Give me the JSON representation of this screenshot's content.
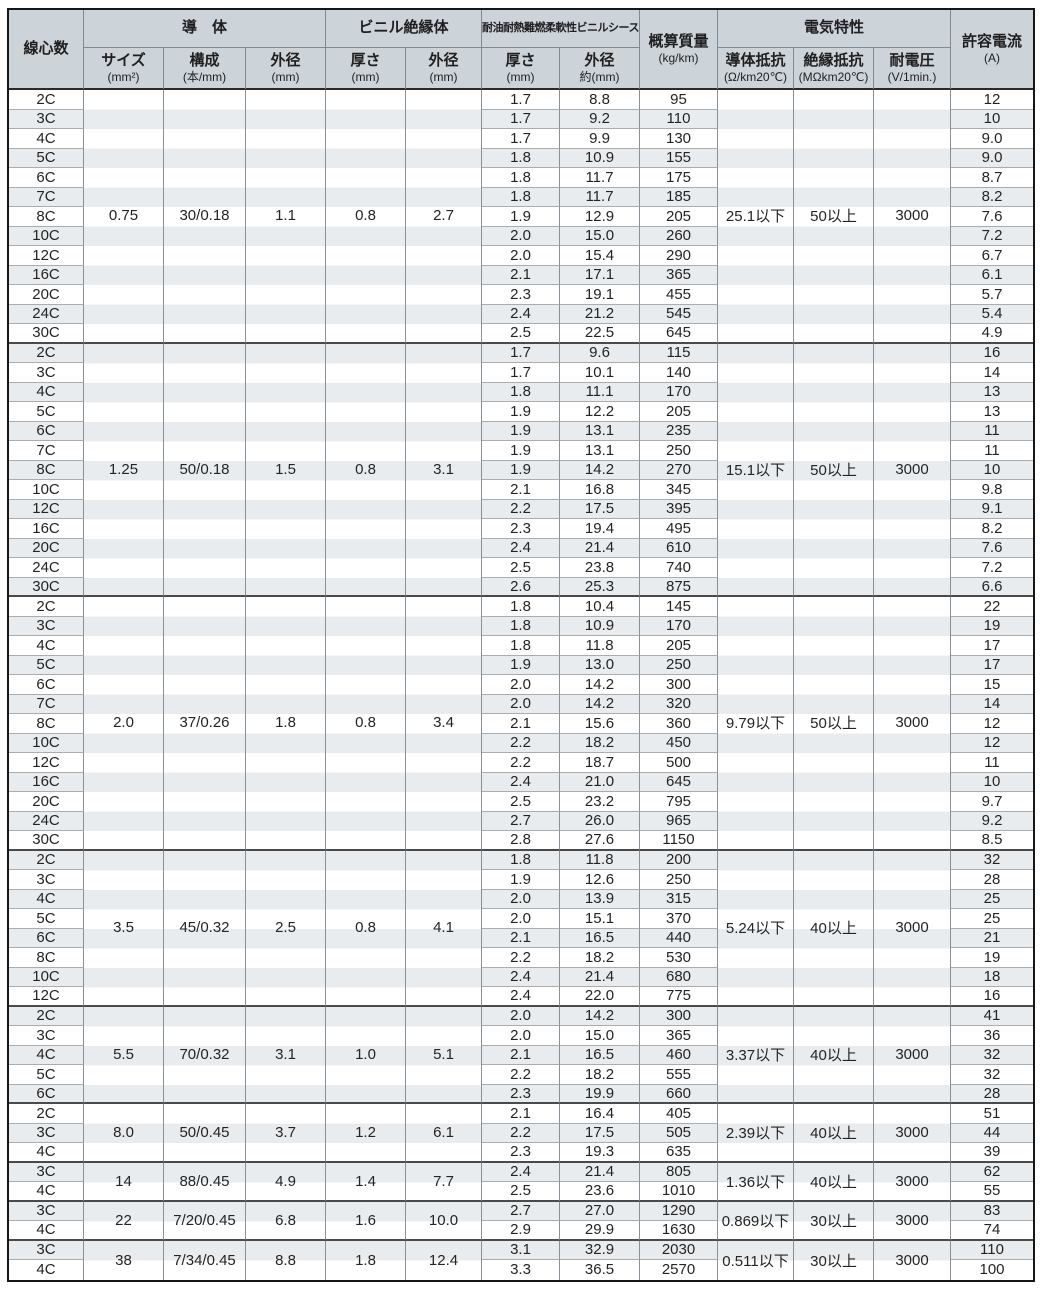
{
  "colors": {
    "header_bg": "#ccd3d9",
    "stripe": "#e8ecef",
    "white": "#ffffff",
    "frame": "#161616",
    "group_line": "#4a4a4a",
    "row_line": "#a8adb2"
  },
  "header": {
    "core": "線心数",
    "conductor_group": "導　体",
    "size": "サイズ",
    "size_unit": "(mm²)",
    "strand": "構成",
    "strand_unit": "(本/mm)",
    "cond_od": "外径",
    "cond_od_unit": "(mm)",
    "insulation_group": "ビニル絶縁体",
    "ins_thk": "厚さ",
    "ins_thk_unit": "(mm)",
    "ins_od": "外径",
    "ins_od_unit": "(mm)",
    "sheath_group": "耐油耐熱難燃柔軟性ビニルシース",
    "sheath_thk": "厚さ",
    "sheath_thk_unit": "(mm)",
    "sheath_od": "外径",
    "sheath_od_unit": "約(mm)",
    "mass": "概算質量",
    "mass_unit": "(kg/km)",
    "electric_group": "電気特性",
    "cond_res": "導体抵抗",
    "cond_res_unit": "(Ω/km20℃)",
    "ins_res": "絶縁抵抗",
    "ins_res_unit": "(MΩkm20℃)",
    "voltage": "耐電圧",
    "voltage_unit": "(V/1min.)",
    "current": "許容電流",
    "current_unit": "(A)"
  },
  "groups": [
    {
      "size": "0.75",
      "strand": "30/0.18",
      "cond_od": "1.1",
      "ins_thk": "0.8",
      "ins_od": "2.7",
      "cond_res": "25.1以下",
      "ins_res": "50以上",
      "voltage": "3000",
      "rows": [
        {
          "cores": "2C",
          "sheath_thk": "1.7",
          "sheath_od": "8.8",
          "mass": "95",
          "current": "12"
        },
        {
          "cores": "3C",
          "sheath_thk": "1.7",
          "sheath_od": "9.2",
          "mass": "110",
          "current": "10"
        },
        {
          "cores": "4C",
          "sheath_thk": "1.7",
          "sheath_od": "9.9",
          "mass": "130",
          "current": "9.0"
        },
        {
          "cores": "5C",
          "sheath_thk": "1.8",
          "sheath_od": "10.9",
          "mass": "155",
          "current": "9.0"
        },
        {
          "cores": "6C",
          "sheath_thk": "1.8",
          "sheath_od": "11.7",
          "mass": "175",
          "current": "8.7"
        },
        {
          "cores": "7C",
          "sheath_thk": "1.8",
          "sheath_od": "11.7",
          "mass": "185",
          "current": "8.2"
        },
        {
          "cores": "8C",
          "sheath_thk": "1.9",
          "sheath_od": "12.9",
          "mass": "205",
          "current": "7.6"
        },
        {
          "cores": "10C",
          "sheath_thk": "2.0",
          "sheath_od": "15.0",
          "mass": "260",
          "current": "7.2"
        },
        {
          "cores": "12C",
          "sheath_thk": "2.0",
          "sheath_od": "15.4",
          "mass": "290",
          "current": "6.7"
        },
        {
          "cores": "16C",
          "sheath_thk": "2.1",
          "sheath_od": "17.1",
          "mass": "365",
          "current": "6.1"
        },
        {
          "cores": "20C",
          "sheath_thk": "2.3",
          "sheath_od": "19.1",
          "mass": "455",
          "current": "5.7"
        },
        {
          "cores": "24C",
          "sheath_thk": "2.4",
          "sheath_od": "21.2",
          "mass": "545",
          "current": "5.4"
        },
        {
          "cores": "30C",
          "sheath_thk": "2.5",
          "sheath_od": "22.5",
          "mass": "645",
          "current": "4.9"
        }
      ]
    },
    {
      "size": "1.25",
      "strand": "50/0.18",
      "cond_od": "1.5",
      "ins_thk": "0.8",
      "ins_od": "3.1",
      "cond_res": "15.1以下",
      "ins_res": "50以上",
      "voltage": "3000",
      "rows": [
        {
          "cores": "2C",
          "sheath_thk": "1.7",
          "sheath_od": "9.6",
          "mass": "115",
          "current": "16"
        },
        {
          "cores": "3C",
          "sheath_thk": "1.7",
          "sheath_od": "10.1",
          "mass": "140",
          "current": "14"
        },
        {
          "cores": "4C",
          "sheath_thk": "1.8",
          "sheath_od": "11.1",
          "mass": "170",
          "current": "13"
        },
        {
          "cores": "5C",
          "sheath_thk": "1.9",
          "sheath_od": "12.2",
          "mass": "205",
          "current": "13"
        },
        {
          "cores": "6C",
          "sheath_thk": "1.9",
          "sheath_od": "13.1",
          "mass": "235",
          "current": "11"
        },
        {
          "cores": "7C",
          "sheath_thk": "1.9",
          "sheath_od": "13.1",
          "mass": "250",
          "current": "11"
        },
        {
          "cores": "8C",
          "sheath_thk": "1.9",
          "sheath_od": "14.2",
          "mass": "270",
          "current": "10"
        },
        {
          "cores": "10C",
          "sheath_thk": "2.1",
          "sheath_od": "16.8",
          "mass": "345",
          "current": "9.8"
        },
        {
          "cores": "12C",
          "sheath_thk": "2.2",
          "sheath_od": "17.5",
          "mass": "395",
          "current": "9.1"
        },
        {
          "cores": "16C",
          "sheath_thk": "2.3",
          "sheath_od": "19.4",
          "mass": "495",
          "current": "8.2"
        },
        {
          "cores": "20C",
          "sheath_thk": "2.4",
          "sheath_od": "21.4",
          "mass": "610",
          "current": "7.6"
        },
        {
          "cores": "24C",
          "sheath_thk": "2.5",
          "sheath_od": "23.8",
          "mass": "740",
          "current": "7.2"
        },
        {
          "cores": "30C",
          "sheath_thk": "2.6",
          "sheath_od": "25.3",
          "mass": "875",
          "current": "6.6"
        }
      ]
    },
    {
      "size": "2.0",
      "strand": "37/0.26",
      "cond_od": "1.8",
      "ins_thk": "0.8",
      "ins_od": "3.4",
      "cond_res": "9.79以下",
      "ins_res": "50以上",
      "voltage": "3000",
      "rows": [
        {
          "cores": "2C",
          "sheath_thk": "1.8",
          "sheath_od": "10.4",
          "mass": "145",
          "current": "22"
        },
        {
          "cores": "3C",
          "sheath_thk": "1.8",
          "sheath_od": "10.9",
          "mass": "170",
          "current": "19"
        },
        {
          "cores": "4C",
          "sheath_thk": "1.8",
          "sheath_od": "11.8",
          "mass": "205",
          "current": "17"
        },
        {
          "cores": "5C",
          "sheath_thk": "1.9",
          "sheath_od": "13.0",
          "mass": "250",
          "current": "17"
        },
        {
          "cores": "6C",
          "sheath_thk": "2.0",
          "sheath_od": "14.2",
          "mass": "300",
          "current": "15"
        },
        {
          "cores": "7C",
          "sheath_thk": "2.0",
          "sheath_od": "14.2",
          "mass": "320",
          "current": "14"
        },
        {
          "cores": "8C",
          "sheath_thk": "2.1",
          "sheath_od": "15.6",
          "mass": "360",
          "current": "12"
        },
        {
          "cores": "10C",
          "sheath_thk": "2.2",
          "sheath_od": "18.2",
          "mass": "450",
          "current": "12"
        },
        {
          "cores": "12C",
          "sheath_thk": "2.2",
          "sheath_od": "18.7",
          "mass": "500",
          "current": "11"
        },
        {
          "cores": "16C",
          "sheath_thk": "2.4",
          "sheath_od": "21.0",
          "mass": "645",
          "current": "10"
        },
        {
          "cores": "20C",
          "sheath_thk": "2.5",
          "sheath_od": "23.2",
          "mass": "795",
          "current": "9.7"
        },
        {
          "cores": "24C",
          "sheath_thk": "2.7",
          "sheath_od": "26.0",
          "mass": "965",
          "current": "9.2"
        },
        {
          "cores": "30C",
          "sheath_thk": "2.8",
          "sheath_od": "27.6",
          "mass": "1150",
          "current": "8.5"
        }
      ]
    },
    {
      "size": "3.5",
      "strand": "45/0.32",
      "cond_od": "2.5",
      "ins_thk": "0.8",
      "ins_od": "4.1",
      "cond_res": "5.24以下",
      "ins_res": "40以上",
      "voltage": "3000",
      "rows": [
        {
          "cores": "2C",
          "sheath_thk": "1.8",
          "sheath_od": "11.8",
          "mass": "200",
          "current": "32"
        },
        {
          "cores": "3C",
          "sheath_thk": "1.9",
          "sheath_od": "12.6",
          "mass": "250",
          "current": "28"
        },
        {
          "cores": "4C",
          "sheath_thk": "2.0",
          "sheath_od": "13.9",
          "mass": "315",
          "current": "25"
        },
        {
          "cores": "5C",
          "sheath_thk": "2.0",
          "sheath_od": "15.1",
          "mass": "370",
          "current": "25"
        },
        {
          "cores": "6C",
          "sheath_thk": "2.1",
          "sheath_od": "16.5",
          "mass": "440",
          "current": "21"
        },
        {
          "cores": "8C",
          "sheath_thk": "2.2",
          "sheath_od": "18.2",
          "mass": "530",
          "current": "19"
        },
        {
          "cores": "10C",
          "sheath_thk": "2.4",
          "sheath_od": "21.4",
          "mass": "680",
          "current": "18"
        },
        {
          "cores": "12C",
          "sheath_thk": "2.4",
          "sheath_od": "22.0",
          "mass": "775",
          "current": "16"
        }
      ]
    },
    {
      "size": "5.5",
      "strand": "70/0.32",
      "cond_od": "3.1",
      "ins_thk": "1.0",
      "ins_od": "5.1",
      "cond_res": "3.37以下",
      "ins_res": "40以上",
      "voltage": "3000",
      "rows": [
        {
          "cores": "2C",
          "sheath_thk": "2.0",
          "sheath_od": "14.2",
          "mass": "300",
          "current": "41"
        },
        {
          "cores": "3C",
          "sheath_thk": "2.0",
          "sheath_od": "15.0",
          "mass": "365",
          "current": "36"
        },
        {
          "cores": "4C",
          "sheath_thk": "2.1",
          "sheath_od": "16.5",
          "mass": "460",
          "current": "32"
        },
        {
          "cores": "5C",
          "sheath_thk": "2.2",
          "sheath_od": "18.2",
          "mass": "555",
          "current": "32"
        },
        {
          "cores": "6C",
          "sheath_thk": "2.3",
          "sheath_od": "19.9",
          "mass": "660",
          "current": "28"
        }
      ]
    },
    {
      "size": "8.0",
      "strand": "50/0.45",
      "cond_od": "3.7",
      "ins_thk": "1.2",
      "ins_od": "6.1",
      "cond_res": "2.39以下",
      "ins_res": "40以上",
      "voltage": "3000",
      "rows": [
        {
          "cores": "2C",
          "sheath_thk": "2.1",
          "sheath_od": "16.4",
          "mass": "405",
          "current": "51"
        },
        {
          "cores": "3C",
          "sheath_thk": "2.2",
          "sheath_od": "17.5",
          "mass": "505",
          "current": "44"
        },
        {
          "cores": "4C",
          "sheath_thk": "2.3",
          "sheath_od": "19.3",
          "mass": "635",
          "current": "39"
        }
      ]
    },
    {
      "size": "14",
      "strand": "88/0.45",
      "cond_od": "4.9",
      "ins_thk": "1.4",
      "ins_od": "7.7",
      "cond_res": "1.36以下",
      "ins_res": "40以上",
      "voltage": "3000",
      "rows": [
        {
          "cores": "3C",
          "sheath_thk": "2.4",
          "sheath_od": "21.4",
          "mass": "805",
          "current": "62"
        },
        {
          "cores": "4C",
          "sheath_thk": "2.5",
          "sheath_od": "23.6",
          "mass": "1010",
          "current": "55"
        }
      ]
    },
    {
      "size": "22",
      "strand": "7/20/0.45",
      "cond_od": "6.8",
      "ins_thk": "1.6",
      "ins_od": "10.0",
      "cond_res": "0.869以下",
      "ins_res": "30以上",
      "voltage": "3000",
      "rows": [
        {
          "cores": "3C",
          "sheath_thk": "2.7",
          "sheath_od": "27.0",
          "mass": "1290",
          "current": "83"
        },
        {
          "cores": "4C",
          "sheath_thk": "2.9",
          "sheath_od": "29.9",
          "mass": "1630",
          "current": "74"
        }
      ]
    },
    {
      "size": "38",
      "strand": "7/34/0.45",
      "cond_od": "8.8",
      "ins_thk": "1.8",
      "ins_od": "12.4",
      "cond_res": "0.511以下",
      "ins_res": "30以上",
      "voltage": "3000",
      "rows": [
        {
          "cores": "3C",
          "sheath_thk": "3.1",
          "sheath_od": "32.9",
          "mass": "2030",
          "current": "110"
        },
        {
          "cores": "4C",
          "sheath_thk": "3.3",
          "sheath_od": "36.5",
          "mass": "2570",
          "current": "100"
        }
      ]
    }
  ]
}
